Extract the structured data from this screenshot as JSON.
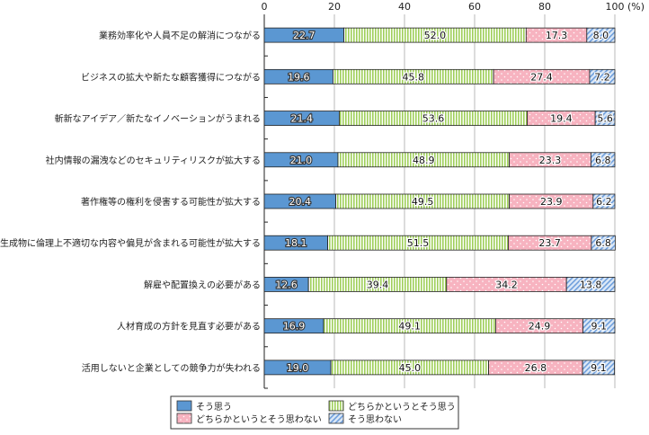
{
  "chart_data": {
    "type": "bar",
    "orientation": "horizontal",
    "stacked": true,
    "title": "",
    "xlabel": "",
    "ylabel": "",
    "xlim": [
      0,
      100
    ],
    "x_ticks": [
      "0",
      "20",
      "40",
      "60",
      "80",
      "100"
    ],
    "unit_label": "(%)",
    "grid": true,
    "legend_position": "bottom",
    "categories": [
      "業務効率化や人員不足の解消につながる",
      "ビジネスの拡大や新たな顧客獲得につながる",
      "斬新なアイデア／新たなイノベーションがうまれる",
      "社内情報の漏洩などのセキュリティリスクが拡大する",
      "著作権等の権利を侵害する可能性が拡大する",
      "生成物に倫理上不適切な内容や偏見が含まれる可能性が拡大する",
      "解雇や配置換えの必要がある",
      "人材育成の方針を見直す必要がある",
      "活用しないと企業としての競争力が失われる"
    ],
    "series": [
      {
        "name": "そう思う",
        "color": "#5b97d2",
        "pattern": "solid",
        "values": [
          22.7,
          19.6,
          21.4,
          21.0,
          20.4,
          18.1,
          12.6,
          16.9,
          19.0
        ]
      },
      {
        "name": "どちらかというとそう思う",
        "color": "#9fcf5a",
        "pattern": "vertical-stripes",
        "values": [
          52.0,
          45.8,
          53.6,
          48.9,
          49.5,
          51.5,
          39.4,
          49.1,
          45.0
        ]
      },
      {
        "name": "どちらかというとそう思わない",
        "color": "#f7b3c0",
        "pattern": "dots",
        "values": [
          17.3,
          27.4,
          19.4,
          23.3,
          23.9,
          23.7,
          34.2,
          24.9,
          26.8
        ]
      },
      {
        "name": "そう思わない",
        "color": "#8fb4e3",
        "pattern": "diagonal-hatch",
        "values": [
          8.0,
          7.2,
          5.6,
          6.8,
          6.2,
          6.8,
          13.8,
          9.1,
          9.1
        ]
      }
    ]
  }
}
